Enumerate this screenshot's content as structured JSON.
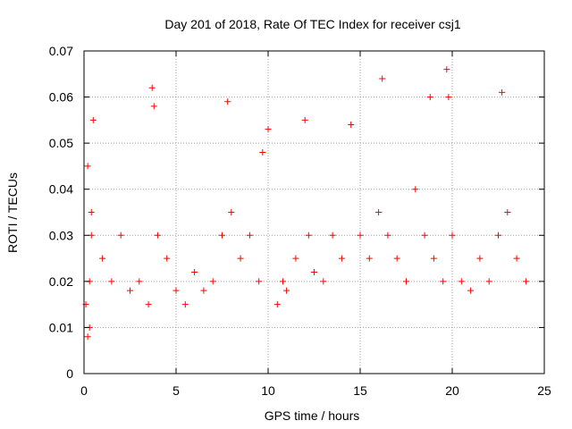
{
  "chart_data": {
    "type": "scatter",
    "title": "Day 201 of 2018, Rate Of TEC Index for receiver csj1",
    "xlabel": "GPS time / hours",
    "ylabel": "ROTI / TECUs",
    "xlim": [
      0,
      25
    ],
    "ylim": [
      0,
      0.07
    ],
    "xticks": [
      "0",
      "5",
      "10",
      "15",
      "20",
      "25"
    ],
    "yticks": [
      "0",
      "0.01",
      "0.02",
      "0.03",
      "0.04",
      "0.05",
      "0.06",
      "0.07"
    ],
    "grid": true,
    "marker": "+",
    "color": "#ff0000",
    "series": [
      {
        "name": "ROTI",
        "x": [
          0.1,
          0.2,
          0.3,
          0.4,
          0.5,
          0.3,
          0.2,
          0.4,
          1.0,
          1.5,
          2.0,
          2.5,
          3.0,
          3.5,
          3.7,
          3.8,
          4.0,
          4.5,
          5.0,
          5.5,
          6.0,
          6.5,
          7.0,
          7.5,
          7.8,
          8.0,
          8.5,
          9.0,
          9.5,
          9.7,
          10.0,
          10.5,
          10.8,
          11.0,
          11.5,
          12.0,
          12.2,
          12.5,
          13.0,
          13.5,
          14.0,
          14.5,
          15.0,
          15.5,
          16.0,
          16.2,
          16.5,
          17.0,
          17.5,
          18.0,
          18.5,
          18.8,
          19.0,
          19.5,
          19.7,
          19.8,
          20.0,
          20.5,
          21.0,
          21.5,
          22.0,
          22.5,
          22.7,
          23.0,
          23.5,
          24.0
        ],
        "y": [
          0.015,
          0.045,
          0.02,
          0.035,
          0.055,
          0.01,
          0.008,
          0.03,
          0.025,
          0.02,
          0.03,
          0.018,
          0.02,
          0.015,
          0.062,
          0.058,
          0.03,
          0.025,
          0.018,
          0.015,
          0.022,
          0.018,
          0.02,
          0.03,
          0.059,
          0.035,
          0.025,
          0.03,
          0.02,
          0.048,
          0.053,
          0.015,
          0.02,
          0.018,
          0.025,
          0.055,
          0.03,
          0.022,
          0.02,
          0.03,
          0.025,
          0.054,
          0.03,
          0.025,
          0.035,
          0.064,
          0.03,
          0.025,
          0.02,
          0.04,
          0.03,
          0.06,
          0.025,
          0.02,
          0.066,
          0.06,
          0.03,
          0.02,
          0.018,
          0.025,
          0.02,
          0.03,
          0.061,
          0.035,
          0.025,
          0.02
        ]
      }
    ]
  }
}
